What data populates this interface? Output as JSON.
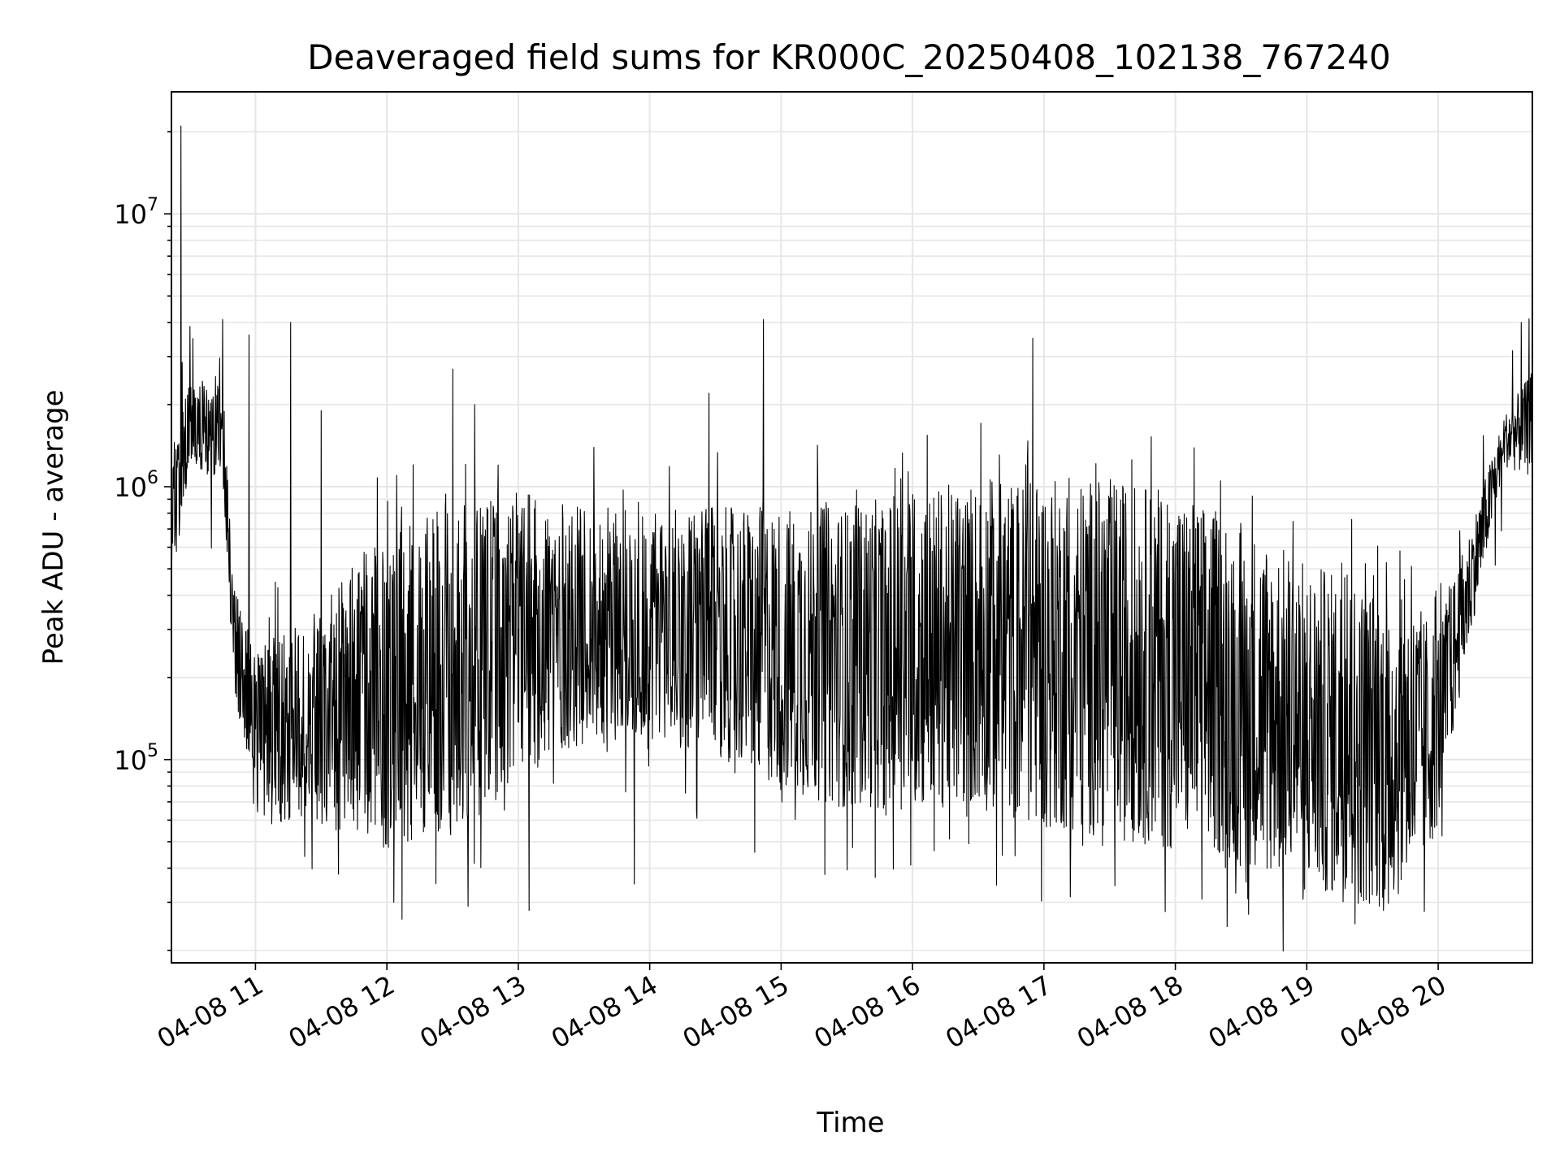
{
  "chart_data": {
    "type": "line",
    "title": "Deaveraged field sums for KR000C_20250408_102138_767240",
    "xlabel": "Time",
    "ylabel": "Peak ADU - average",
    "yscale": "log",
    "ylim": [
      18000,
      28000000
    ],
    "xlim": [
      "2025-04-08T10:21:38",
      "2025-04-08T20:43:00"
    ],
    "grid": true,
    "legend": "none",
    "colors": {
      "line": "#000000",
      "grid": "#e6e6e6",
      "axes": "#000000"
    },
    "x_ticks": [
      {
        "time": "2025-04-08T11:00:00",
        "label": "04-08 11"
      },
      {
        "time": "2025-04-08T12:00:00",
        "label": "04-08 12"
      },
      {
        "time": "2025-04-08T13:00:00",
        "label": "04-08 13"
      },
      {
        "time": "2025-04-08T14:00:00",
        "label": "04-08 14"
      },
      {
        "time": "2025-04-08T15:00:00",
        "label": "04-08 15"
      },
      {
        "time": "2025-04-08T16:00:00",
        "label": "04-08 16"
      },
      {
        "time": "2025-04-08T17:00:00",
        "label": "04-08 17"
      },
      {
        "time": "2025-04-08T18:00:00",
        "label": "04-08 18"
      },
      {
        "time": "2025-04-08T19:00:00",
        "label": "04-08 19"
      },
      {
        "time": "2025-04-08T20:00:00",
        "label": "04-08 20"
      }
    ],
    "y_ticks": [
      {
        "value": 100000,
        "base": "10",
        "exp": "5"
      },
      {
        "value": 1000000,
        "base": "10",
        "exp": "6"
      },
      {
        "value": 10000000,
        "base": "10",
        "exp": "7"
      }
    ],
    "series": [
      {
        "color": "#000000",
        "band_profile": [
          {
            "t": "2025-04-08T10:21:38",
            "low": 400000,
            "high": 1100000
          },
          {
            "t": "2025-04-08T10:30:00",
            "low": 1200000,
            "high": 2500000
          },
          {
            "t": "2025-04-08T10:45:00",
            "low": 1100000,
            "high": 2300000
          },
          {
            "t": "2025-04-08T10:50:00",
            "low": 190000,
            "high": 420000
          },
          {
            "t": "2025-04-08T11:00:00",
            "low": 60000,
            "high": 250000
          },
          {
            "t": "2025-04-08T11:30:00",
            "low": 60000,
            "high": 350000
          },
          {
            "t": "2025-04-08T12:00:00",
            "low": 50000,
            "high": 700000
          },
          {
            "t": "2025-04-08T12:30:00",
            "low": 60000,
            "high": 800000
          },
          {
            "t": "2025-04-08T13:00:00",
            "low": 90000,
            "high": 900000
          },
          {
            "t": "2025-04-08T13:30:00",
            "low": 120000,
            "high": 800000
          },
          {
            "t": "2025-04-08T14:00:00",
            "low": 120000,
            "high": 800000
          },
          {
            "t": "2025-04-08T14:30:00",
            "low": 110000,
            "high": 800000
          },
          {
            "t": "2025-04-08T15:00:00",
            "low": 80000,
            "high": 800000
          },
          {
            "t": "2025-04-08T15:30:00",
            "low": 70000,
            "high": 800000
          },
          {
            "t": "2025-04-08T16:00:00",
            "low": 70000,
            "high": 900000
          },
          {
            "t": "2025-04-08T16:30:00",
            "low": 70000,
            "high": 1000000
          },
          {
            "t": "2025-04-08T17:00:00",
            "low": 60000,
            "high": 1000000
          },
          {
            "t": "2025-04-08T17:30:00",
            "low": 55000,
            "high": 1000000
          },
          {
            "t": "2025-04-08T18:00:00",
            "low": 50000,
            "high": 900000
          },
          {
            "t": "2025-04-08T18:30:00",
            "low": 45000,
            "high": 700000
          },
          {
            "t": "2025-04-08T19:00:00",
            "low": 35000,
            "high": 500000
          },
          {
            "t": "2025-04-08T19:30:00",
            "low": 30000,
            "high": 400000
          },
          {
            "t": "2025-04-08T19:50:00",
            "low": 35000,
            "high": 350000
          },
          {
            "t": "2025-04-08T20:00:00",
            "low": 60000,
            "high": 300000
          },
          {
            "t": "2025-04-08T20:15:00",
            "low": 300000,
            "high": 700000
          },
          {
            "t": "2025-04-08T20:30:00",
            "low": 1200000,
            "high": 1800000
          },
          {
            "t": "2025-04-08T20:43:00",
            "low": 1100000,
            "high": 2600000
          }
        ],
        "spikes": [
          {
            "t": "2025-04-08T10:26:00",
            "value": 21000000
          },
          {
            "t": "2025-04-08T10:45:00",
            "value": 4100000
          },
          {
            "t": "2025-04-08T10:57:00",
            "value": 3600000
          },
          {
            "t": "2025-04-08T11:16:00",
            "value": 4000000
          },
          {
            "t": "2025-04-08T11:30:00",
            "value": 1900000
          },
          {
            "t": "2025-04-08T11:38:00",
            "value": 2400000
          },
          {
            "t": "2025-04-08T12:07:00",
            "value": 1600000
          },
          {
            "t": "2025-04-08T12:30:00",
            "value": 2700000
          },
          {
            "t": "2025-04-08T12:40:00",
            "value": 2000000
          },
          {
            "t": "2025-04-08T14:27:00",
            "value": 2200000
          },
          {
            "t": "2025-04-08T14:52:00",
            "value": 4100000
          },
          {
            "t": "2025-04-08T16:55:00",
            "value": 3500000
          },
          {
            "t": "2025-04-08T20:38:00",
            "value": 4000000
          },
          {
            "t": "2025-04-08T12:07:00",
            "value": 26000
          },
          {
            "t": "2025-04-08T13:05:00",
            "value": 28000
          },
          {
            "t": "2025-04-08T12:37:00",
            "value": 29000
          },
          {
            "t": "2025-04-08T19:22:00",
            "value": 25000
          },
          {
            "t": "2025-04-08T19:35:00",
            "value": 28000
          },
          {
            "t": "2025-04-08T11:38:00",
            "value": 38000
          },
          {
            "t": "2025-04-08T15:43:00",
            "value": 37000
          },
          {
            "t": "2025-04-08T13:53:00",
            "value": 35000
          }
        ]
      }
    ]
  }
}
